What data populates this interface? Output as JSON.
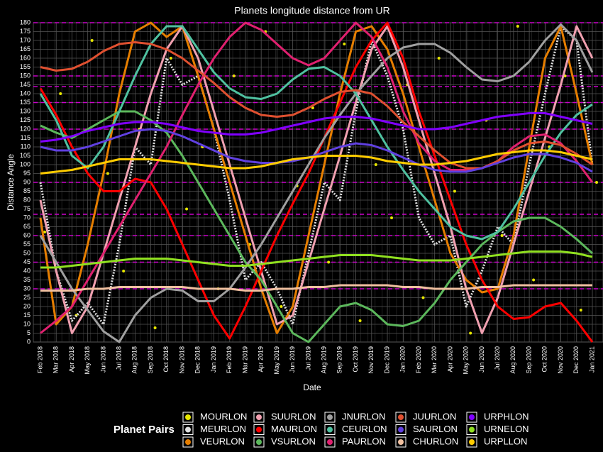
{
  "chart_data": {
    "type": "line",
    "title": "Planets longitude distance from UR",
    "x_label": "Date",
    "y_label": "Distance Angle",
    "legend_title": "Planet Pairs",
    "categories": [
      "Feb 2018",
      "Mar 2018",
      "Apr 2018",
      "May 2018",
      "Jun 2018",
      "Jul 2018",
      "Aug 2018",
      "Sep 2018",
      "Oct 2018",
      "Nov 2018",
      "Dec 2018",
      "Jan 2019",
      "Feb 2019",
      "Mar 2019",
      "Apr 2019",
      "May 2019",
      "Jun 2019",
      "Jul 2019",
      "Aug 2019",
      "Sep 2019",
      "Oct 2019",
      "Nov 2019",
      "Dec 2019",
      "Jan 2020",
      "Feb 2020",
      "Mar 2020",
      "Apr 2020",
      "May 2020",
      "Jun 2020",
      "Jul 2020",
      "Aug 2020",
      "Sep 2020",
      "Oct 2020",
      "Nov 2020",
      "Dec 2020",
      "Jan 2021"
    ],
    "ylim": [
      0,
      180
    ],
    "yticks": [
      0,
      5,
      10,
      15,
      20,
      25,
      30,
      35,
      40,
      45,
      50,
      55,
      60,
      65,
      70,
      75,
      80,
      85,
      90,
      95,
      100,
      105,
      110,
      115,
      120,
      125,
      130,
      135,
      140,
      145,
      150,
      155,
      160,
      165,
      170,
      175,
      180
    ],
    "grid": true,
    "reference_lines": [
      30,
      45,
      60,
      72,
      90,
      120,
      135,
      144,
      150,
      180
    ],
    "reference_color": "#cc00cc",
    "series": [
      {
        "name": "MOURLON",
        "color": "#e6e600",
        "style": "dots",
        "values": [
          62,
          140,
          15,
          170,
          95,
          40,
          120,
          8,
          160,
          75,
          110,
          30,
          150,
          55,
          175,
          20,
          88,
          132,
          45,
          168,
          12,
          100,
          70,
          145,
          25,
          160,
          85,
          5,
          125,
          60,
          178,
          35,
          110,
          150,
          18,
          90
        ]
      },
      {
        "name": "MEURLON",
        "color": "#e0e0e0",
        "style": "dotted",
        "values": [
          90,
          40,
          12,
          22,
          10,
          55,
          110,
          100,
          160,
          145,
          150,
          120,
          80,
          35,
          45,
          30,
          10,
          50,
          90,
          80,
          130,
          170,
          150,
          120,
          70,
          55,
          60,
          20,
          40,
          65,
          55,
          100,
          140,
          178,
          170,
          100
        ]
      },
      {
        "name": "VEURLON",
        "color": "#e67e00",
        "style": "line",
        "values": [
          70,
          10,
          20,
          55,
          95,
          140,
          175,
          180,
          172,
          178,
          150,
          120,
          90,
          60,
          30,
          5,
          20,
          60,
          100,
          140,
          175,
          178,
          165,
          140,
          110,
          80,
          50,
          35,
          28,
          30,
          60,
          110,
          160,
          178,
          140,
          100
        ]
      },
      {
        "name": "SUURLON",
        "color": "#f0a0b0",
        "style": "line",
        "values": [
          80,
          40,
          5,
          20,
          50,
          80,
          110,
          140,
          165,
          178,
          160,
          130,
          100,
          70,
          40,
          10,
          15,
          45,
          75,
          105,
          135,
          165,
          178,
          155,
          125,
          95,
          65,
          30,
          5,
          25,
          55,
          85,
          115,
          145,
          178,
          160
        ]
      },
      {
        "name": "MAURLON",
        "color": "#ff0000",
        "style": "line",
        "values": [
          143,
          128,
          110,
          95,
          85,
          85,
          92,
          90,
          75,
          55,
          35,
          15,
          2,
          20,
          40,
          60,
          78,
          95,
          115,
          135,
          155,
          170,
          180,
          160,
          130,
          105,
          80,
          55,
          35,
          20,
          13,
          14,
          20,
          22,
          12,
          0
        ]
      },
      {
        "name": "VSURLON",
        "color": "#5cb85c",
        "style": "line",
        "values": [
          122,
          118,
          115,
          120,
          125,
          130,
          130,
          125,
          118,
          105,
          90,
          75,
          60,
          45,
          35,
          20,
          5,
          0,
          10,
          20,
          22,
          18,
          10,
          9,
          12,
          22,
          35,
          45,
          55,
          62,
          68,
          70,
          70,
          65,
          58,
          50
        ]
      },
      {
        "name": "JNURLON",
        "color": "#a0a0a0",
        "style": "line",
        "values": [
          60,
          45,
          30,
          18,
          6,
          0,
          15,
          25,
          30,
          29,
          23,
          23,
          30,
          42,
          55,
          70,
          85,
          100,
          115,
          128,
          140,
          150,
          160,
          166,
          168,
          168,
          163,
          155,
          148,
          147,
          150,
          158,
          170,
          179,
          170,
          152
        ]
      },
      {
        "name": "CEURLON",
        "color": "#4fc1a0",
        "style": "line",
        "values": [
          140,
          125,
          105,
          98,
          110,
          130,
          150,
          168,
          178,
          178,
          165,
          152,
          143,
          138,
          137,
          140,
          148,
          154,
          155,
          150,
          140,
          125,
          110,
          97,
          85,
          75,
          65,
          60,
          58,
          62,
          75,
          90,
          105,
          118,
          128,
          134
        ]
      },
      {
        "name": "PAURLON",
        "color": "#e0206f",
        "style": "line",
        "values": [
          5,
          12,
          20,
          35,
          50,
          65,
          80,
          95,
          110,
          128,
          145,
          160,
          172,
          180,
          176,
          168,
          160,
          156,
          160,
          170,
          180,
          172,
          155,
          130,
          112,
          102,
          97,
          97,
          98,
          102,
          110,
          116,
          117,
          112,
          102,
          90
        ]
      },
      {
        "name": "JUURLON",
        "color": "#e05030",
        "style": "line",
        "values": [
          155,
          153,
          154,
          158,
          164,
          168,
          169,
          168,
          165,
          160,
          153,
          146,
          138,
          132,
          128,
          127,
          128,
          132,
          137,
          141,
          142,
          140,
          133,
          124,
          116,
          108,
          101,
          98,
          98,
          102,
          108,
          112,
          113,
          111,
          106,
          100
        ]
      },
      {
        "name": "SAURLON",
        "color": "#6040e0",
        "style": "line",
        "values": [
          110,
          108,
          108,
          110,
          113,
          116,
          119,
          120,
          119,
          116,
          112,
          108,
          104,
          102,
          101,
          101,
          102,
          104,
          107,
          110,
          112,
          111,
          108,
          104,
          100,
          97,
          96,
          96,
          98,
          101,
          104,
          106,
          106,
          104,
          101,
          96
        ]
      },
      {
        "name": "CHURLON",
        "color": "#f0c0a0",
        "style": "line",
        "values": [
          29,
          29,
          29,
          30,
          30,
          31,
          31,
          31,
          31,
          31,
          30,
          30,
          30,
          29,
          29,
          30,
          30,
          31,
          31,
          32,
          32,
          32,
          32,
          31,
          31,
          30,
          30,
          30,
          31,
          31,
          32,
          32,
          32,
          32,
          32,
          32
        ]
      },
      {
        "name": "URPHLON",
        "color": "#8000ff",
        "style": "line",
        "values": [
          113,
          114,
          116,
          119,
          121,
          123,
          124,
          124,
          123,
          121,
          119,
          118,
          117,
          117,
          118,
          120,
          122,
          124,
          126,
          127,
          127,
          126,
          124,
          122,
          120,
          120,
          121,
          123,
          125,
          127,
          128,
          129,
          129,
          127,
          125,
          123
        ]
      },
      {
        "name": "URNELON",
        "color": "#90e020",
        "style": "line",
        "values": [
          42,
          42,
          43,
          44,
          45,
          46,
          47,
          47,
          47,
          46,
          45,
          44,
          43,
          43,
          44,
          45,
          46,
          47,
          48,
          49,
          49,
          49,
          48,
          47,
          46,
          46,
          46,
          47,
          48,
          49,
          50,
          51,
          51,
          51,
          50,
          48
        ]
      },
      {
        "name": "URPLLON",
        "color": "#ffcc00",
        "style": "line",
        "values": [
          95,
          96,
          97,
          99,
          101,
          103,
          103,
          103,
          102,
          101,
          100,
          99,
          98,
          98,
          99,
          101,
          103,
          104,
          105,
          105,
          105,
          104,
          102,
          101,
          100,
          100,
          101,
          102,
          104,
          106,
          107,
          108,
          108,
          107,
          105,
          103
        ]
      }
    ]
  }
}
